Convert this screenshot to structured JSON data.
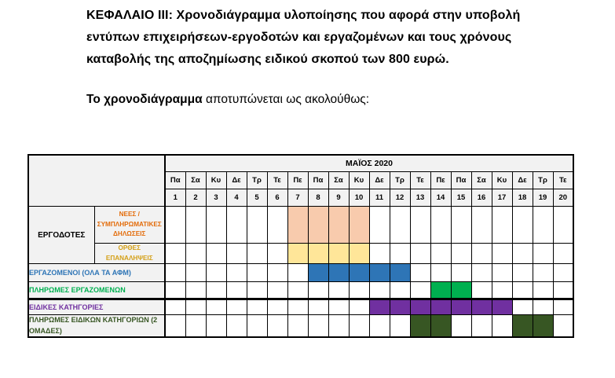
{
  "document": {
    "heading": "ΚΕΦΑΛΑΙΟ ΙΙΙ: Χρονοδιάγραμμα υλοποίησης που αφορά στην υποβολή εντύπων επιχειρήσεων-εργοδοτών και εργαζομένων και τους χρόνους καταβολής της αποζημίωσης ειδικού σκοπού των 800 ευρώ.",
    "lead_bold": "Το χρονοδιάγραμμα",
    "lead_rest": " αποτυπώνεται ως ακολούθως:"
  },
  "chart_data": {
    "type": "gantt",
    "title": "ΜΑΪΟΣ 2020",
    "month_title": "ΜΑΪΟΣ 2020",
    "header_bg": "#F2F2F2",
    "day_names": [
      "Πα",
      "Σα",
      "Κυ",
      "Δε",
      "Τρ",
      "Τε",
      "Πε",
      "Πα",
      "Σα",
      "Κυ",
      "Δε",
      "Τρ",
      "Τε",
      "Πε",
      "Πα",
      "Σα",
      "Κυ",
      "Δε",
      "Τρ",
      "Τε"
    ],
    "day_numbers": [
      1,
      2,
      3,
      4,
      5,
      6,
      7,
      8,
      9,
      10,
      11,
      12,
      13,
      14,
      15,
      16,
      17,
      18,
      19,
      20
    ],
    "rows": [
      {
        "group": "ΕΡΓΟΔΟΤΕΣ",
        "label": "ΝΕΕΣ / ΣΥΜΠΛΗΡΩΜΑΤΙΚΕΣ ΔΗΛΩΣΕΙΣ",
        "label_color": "#E36C0A",
        "bar_color": "#F8CBAD",
        "days": [
          7,
          8,
          9,
          10
        ]
      },
      {
        "group": "ΕΡΓΟΔΟΤΕΣ",
        "label": "ΟΡΘΕΣ ΕΠΑΝΑΛΗΨΕΙΣ",
        "label_color": "#D4A017",
        "bar_color": "#FFE699",
        "days": [
          7,
          8,
          9,
          10
        ]
      },
      {
        "label": "ΕΡΓΑΖΟΜΕΝΟΙ (ΟΛΑ ΤΑ ΑΦΜ)",
        "label_color": "#2E75B6",
        "bar_color": "#2E75B6",
        "days": [
          8,
          9,
          10,
          11,
          12
        ]
      },
      {
        "label": "ΠΛΗΡΩΜΕΣ ΕΡΓΑΖΟΜΕΝΩΝ",
        "label_color": "#00B050",
        "bar_color": "#00B050",
        "days": [
          14,
          15
        ]
      },
      {
        "label": "ΕΙΔΙΚΕΣ ΚΑΤΗΓΟΡΙΕΣ",
        "label_color": "#7030A0",
        "bar_color": "#7030A0",
        "days": [
          11,
          12,
          13,
          14,
          15,
          16,
          17
        ]
      },
      {
        "label": "ΠΛΗΡΩΜΕΣ ΕΙΔΙΚΩΝ ΚΑΤΗΓΟΡΙΩΝ (2 ΟΜΑΔΕΣ)",
        "label_color": "#375623",
        "bar_color": "#375623",
        "days": [
          13,
          14,
          18,
          19
        ]
      }
    ]
  }
}
